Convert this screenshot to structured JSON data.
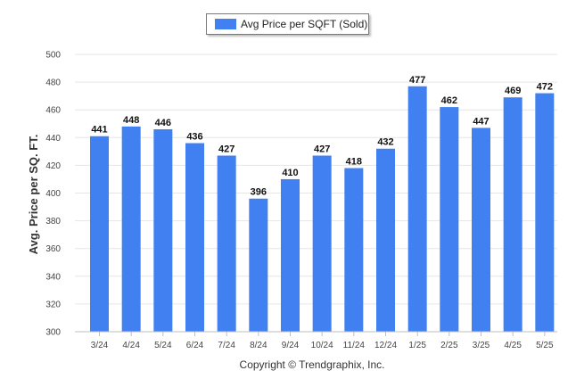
{
  "colors": {
    "bar": "#4080f0",
    "grid": "#e6e6e6",
    "axis": "#bfbfbf"
  },
  "legend": {
    "label": "Avg Price per SQFT (Sold)"
  },
  "footer": "Copyright © Trendgraphix, Inc.",
  "chart_data": {
    "type": "bar",
    "categories": [
      "3/24",
      "4/24",
      "5/24",
      "6/24",
      "7/24",
      "8/24",
      "9/24",
      "10/24",
      "11/24",
      "12/24",
      "1/25",
      "2/25",
      "3/25",
      "4/25",
      "5/25"
    ],
    "series": [
      {
        "name": "Avg Price per SQFT (Sold)",
        "values": [
          441,
          448,
          446,
          436,
          427,
          396,
          410,
          427,
          418,
          432,
          477,
          462,
          447,
          469,
          472
        ]
      }
    ],
    "ylabel": "Avg. Price per SQ. FT.",
    "xlabel": "",
    "ylim": [
      300,
      500
    ],
    "yticks": [
      300,
      320,
      340,
      360,
      380,
      400,
      420,
      440,
      460,
      480,
      500
    ],
    "grid": true,
    "legend_position": "top-center"
  }
}
